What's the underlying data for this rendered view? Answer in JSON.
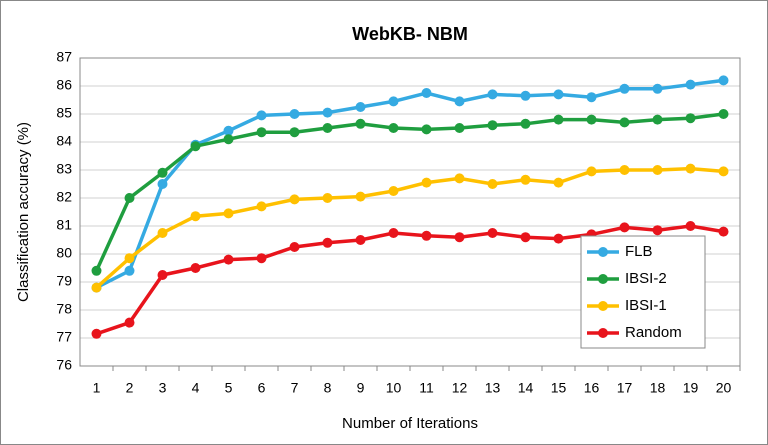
{
  "chart_data": {
    "type": "line",
    "title": "WebKB- NBM",
    "xlabel": "Number of Iterations",
    "ylabel": "Classification accuracy (%)",
    "categories": [
      "1",
      "2",
      "3",
      "4",
      "5",
      "6",
      "7",
      "8",
      "9",
      "10",
      "11",
      "12",
      "13",
      "14",
      "15",
      "16",
      "17",
      "18",
      "19",
      "20"
    ],
    "series": [
      {
        "name": "FLB",
        "color": "#35aae2",
        "values": [
          78.8,
          79.4,
          82.5,
          83.9,
          84.4,
          84.95,
          85.0,
          85.05,
          85.25,
          85.45,
          85.75,
          85.45,
          85.7,
          85.65,
          85.7,
          85.6,
          85.9,
          85.9,
          86.05,
          86.2
        ]
      },
      {
        "name": "IBSI-2",
        "color": "#1f9e3f",
        "values": [
          79.4,
          82.0,
          82.9,
          83.85,
          84.1,
          84.35,
          84.35,
          84.5,
          84.65,
          84.5,
          84.45,
          84.5,
          84.6,
          84.65,
          84.8,
          84.8,
          84.7,
          84.8,
          84.85,
          85.0
        ]
      },
      {
        "name": "IBSI-1",
        "color": "#ffc000",
        "values": [
          78.8,
          79.85,
          80.75,
          81.35,
          81.45,
          81.7,
          81.95,
          82.0,
          82.05,
          82.25,
          82.55,
          82.7,
          82.5,
          82.65,
          82.55,
          82.95,
          83.0,
          83.0,
          83.05,
          82.95
        ]
      },
      {
        "name": "Random",
        "color": "#e8141c",
        "values": [
          77.15,
          77.55,
          79.25,
          79.5,
          79.8,
          79.85,
          80.25,
          80.4,
          80.5,
          80.75,
          80.65,
          80.6,
          80.75,
          80.6,
          80.55,
          80.7,
          80.95,
          80.85,
          81.0,
          80.8
        ]
      }
    ],
    "ylim": [
      76,
      87
    ],
    "yticks": [
      76,
      77,
      78,
      79,
      80,
      81,
      82,
      83,
      84,
      85,
      86,
      87
    ],
    "grid": true,
    "legend": "lower right"
  }
}
